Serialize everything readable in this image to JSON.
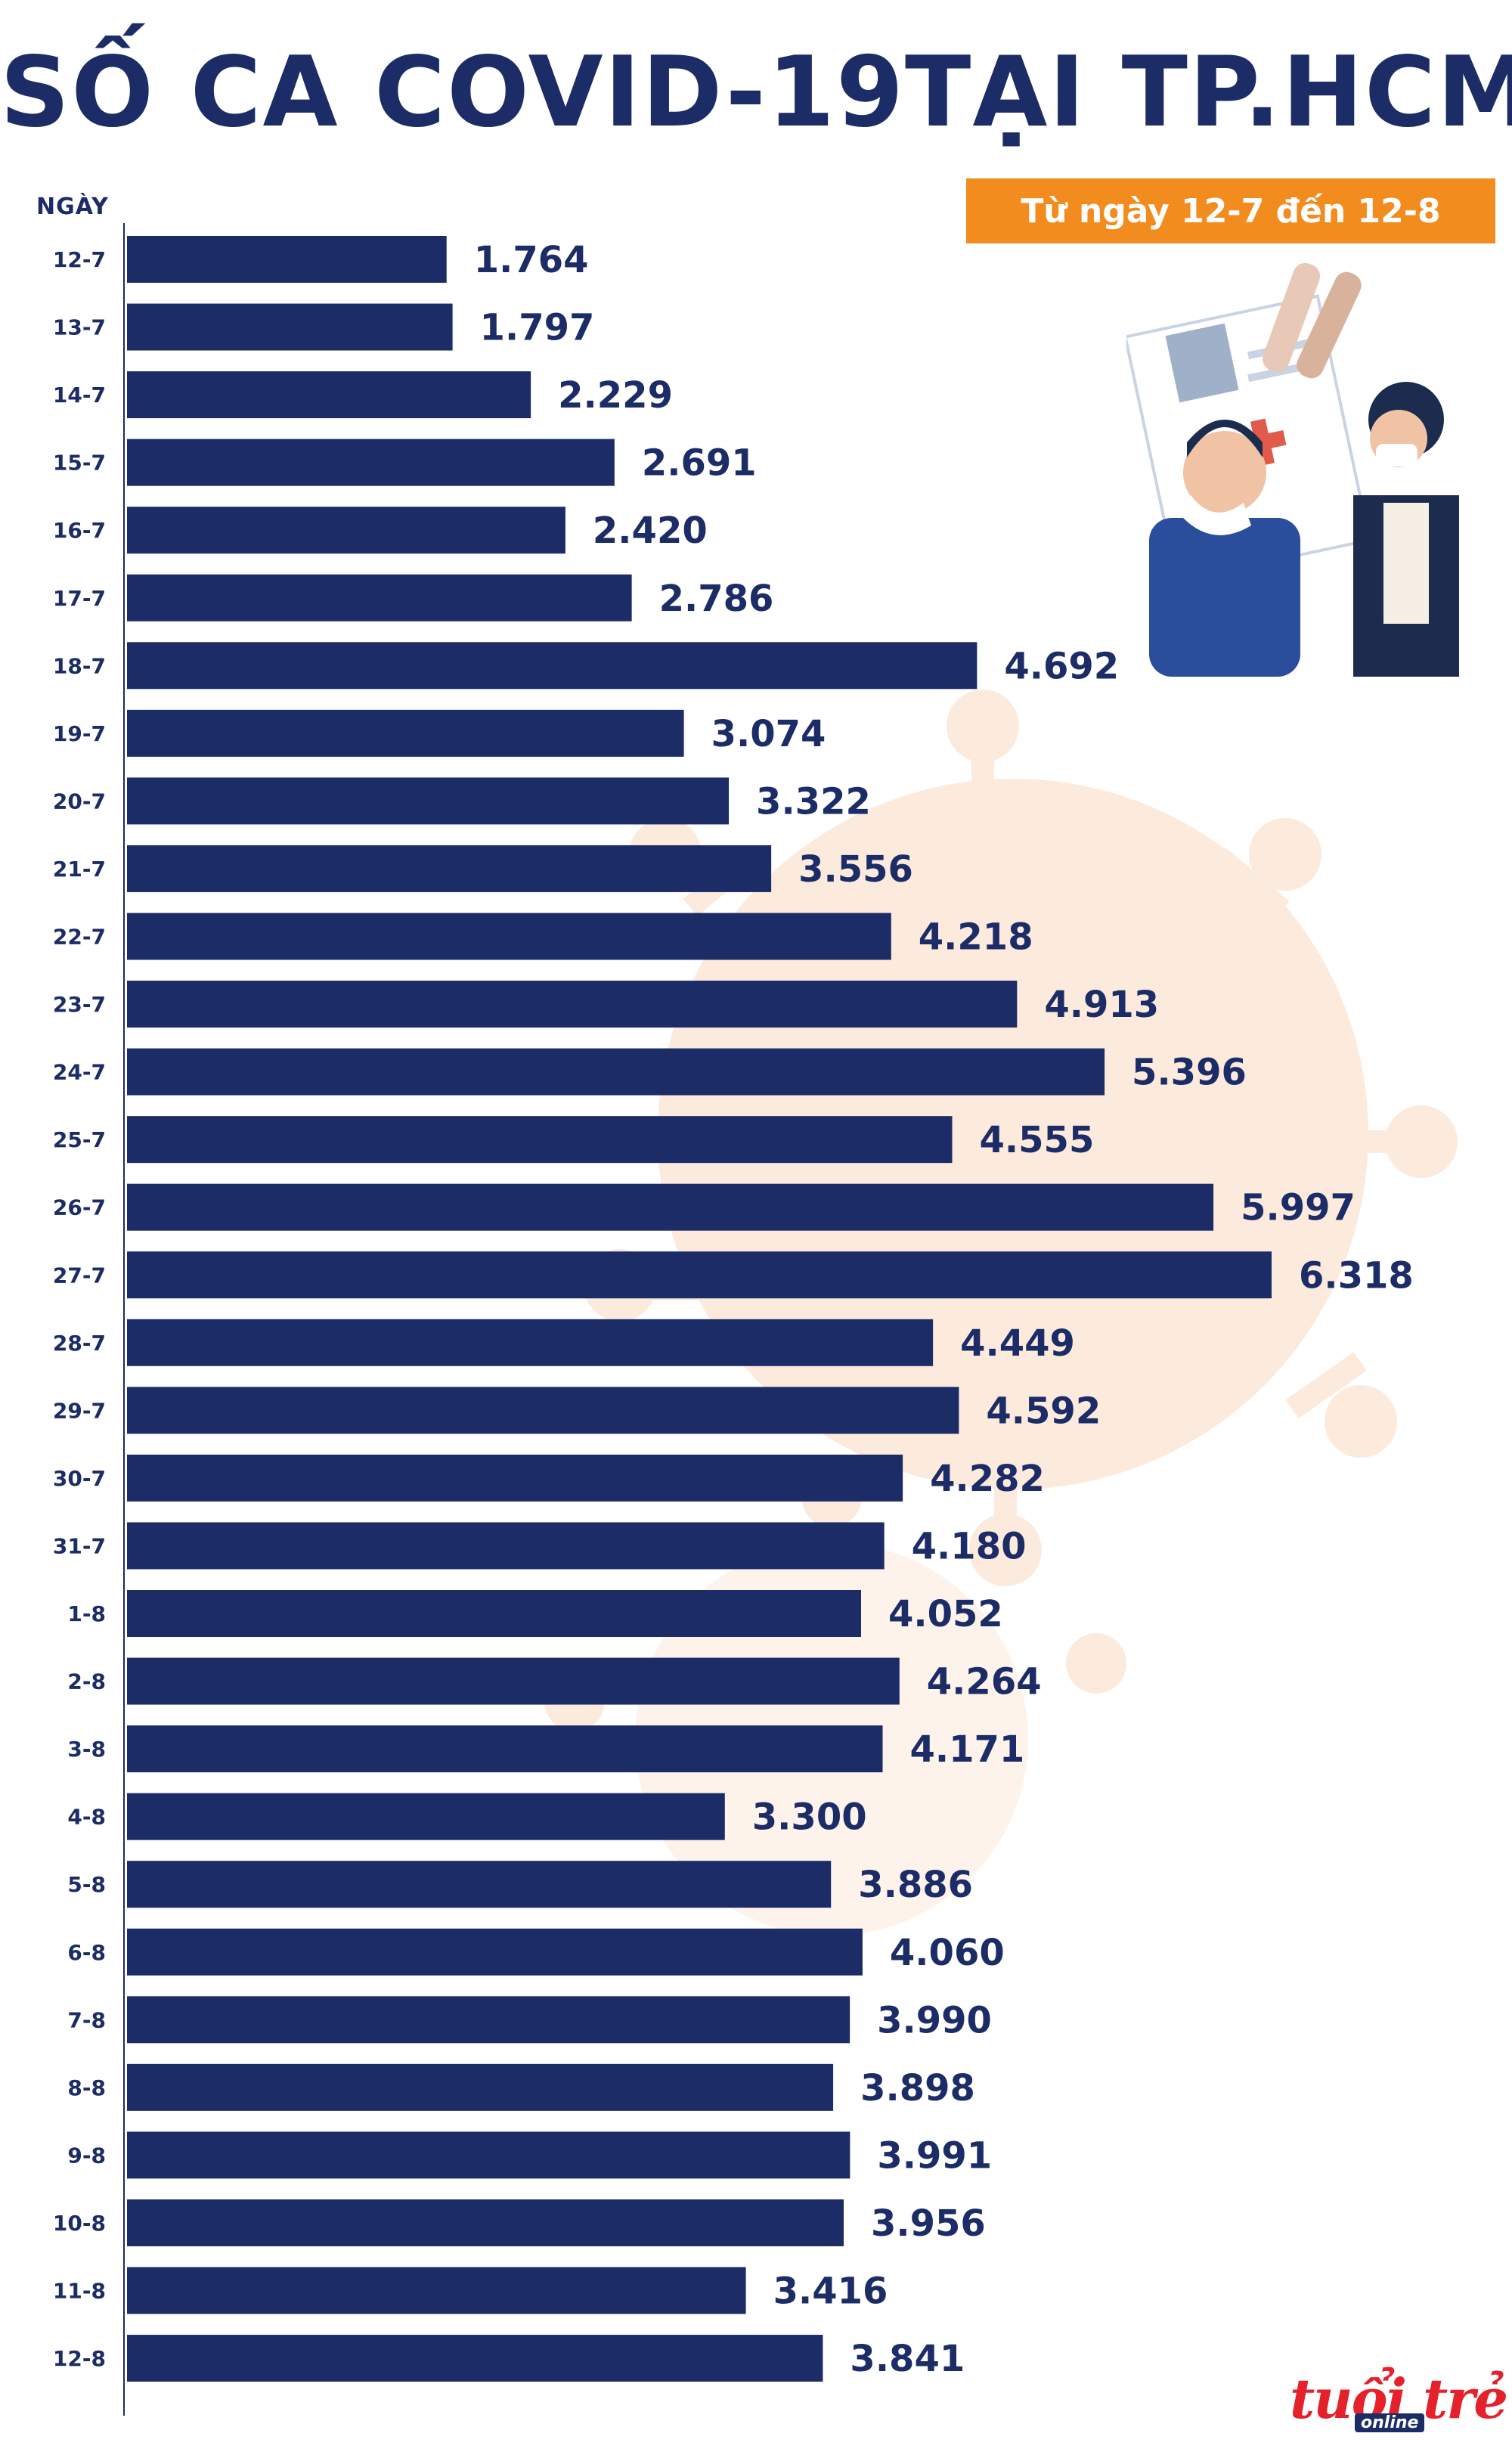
{
  "title": "SỐ CA COVID-19TẠI TP.HCM",
  "date_axis_label": "NGÀY",
  "date_range": "Từ ngày 12-7 đến 12-8",
  "logo": {
    "main": "tuổi trẻ",
    "sub": "online"
  },
  "colors": {
    "bar": "#1c2c66",
    "accent": "#f28c1f",
    "title": "#1c2c66",
    "virus": "#fbe3d2"
  },
  "chart_data": {
    "type": "bar",
    "orientation": "horizontal",
    "title": "SỐ CA COVID-19TẠI TP.HCM",
    "subtitle": "Từ ngày 12-7 đến 12-8",
    "ylabel": "NGÀY",
    "xlim": [
      0,
      6318
    ],
    "categories": [
      "12-7",
      "13-7",
      "14-7",
      "15-7",
      "16-7",
      "17-7",
      "18-7",
      "19-7",
      "20-7",
      "21-7",
      "22-7",
      "23-7",
      "24-7",
      "25-7",
      "26-7",
      "27-7",
      "28-7",
      "29-7",
      "30-7",
      "31-7",
      "1-8",
      "2-8",
      "3-8",
      "4-8",
      "5-8",
      "6-8",
      "7-8",
      "8-8",
      "9-8",
      "10-8",
      "11-8",
      "12-8"
    ],
    "values": [
      1764,
      1797,
      2229,
      2691,
      2420,
      2786,
      4692,
      3074,
      3322,
      3556,
      4218,
      4913,
      5396,
      4555,
      5997,
      6318,
      4449,
      4592,
      4282,
      4180,
      4052,
      4264,
      4171,
      3300,
      3886,
      4060,
      3990,
      3898,
      3991,
      3956,
      3416,
      3841
    ],
    "labels": [
      "1.764",
      "1.797",
      "2.229",
      "2.691",
      "2.420",
      "2.786",
      "4.692",
      "3.074",
      "3.322",
      "3.556",
      "4.218",
      "4.913",
      "5.396",
      "4.555",
      "5.997",
      "6.318",
      "4.449",
      "4.592",
      "4.282",
      "4.180",
      "4.052",
      "4.264",
      "4.171",
      "3.300",
      "3.886",
      "4.060",
      "3.990",
      "3.898",
      "3.991",
      "3.956",
      "3.416",
      "3.841"
    ]
  }
}
